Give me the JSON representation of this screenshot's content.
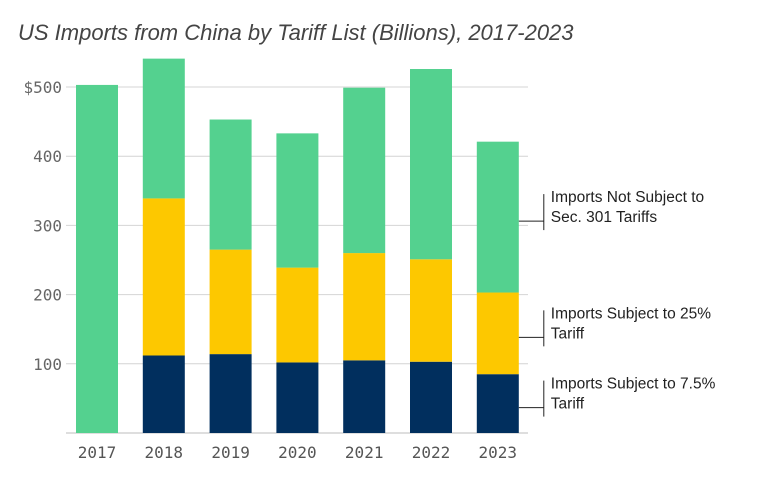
{
  "chart_data": {
    "type": "bar",
    "stacked": true,
    "title": "US Imports from China by Tariff List (Billions), 2017-2023",
    "xlabel": "",
    "ylabel": "",
    "ylim": [
      0,
      550
    ],
    "y_ticks": [
      {
        "value": 100,
        "label": "100"
      },
      {
        "value": 200,
        "label": "200"
      },
      {
        "value": 300,
        "label": "300"
      },
      {
        "value": 400,
        "label": "400"
      },
      {
        "value": 500,
        "label": "$500"
      }
    ],
    "grid": true,
    "legend_position": "right",
    "categories": [
      "2017",
      "2018",
      "2019",
      "2020",
      "2021",
      "2022",
      "2023"
    ],
    "series": [
      {
        "name": "Imports Subject to 7.5% Tariff",
        "label_lines": [
          "Imports Subject to 7.5%",
          "Tariff"
        ],
        "color": "#012f5e",
        "values": [
          0,
          112,
          114,
          102,
          105,
          103,
          85
        ]
      },
      {
        "name": "Imports Subject to 25% Tariff",
        "label_lines": [
          "Imports Subject to 25%",
          "Tariff"
        ],
        "color": "#fdc800",
        "values": [
          0,
          227,
          151,
          137,
          155,
          148,
          118
        ]
      },
      {
        "name": "Imports Not Subject to Sec. 301 Tariffs",
        "label_lines": [
          "Imports Not Subject to",
          "Sec. 301 Tariffs"
        ],
        "color": "#54d18f",
        "values": [
          503,
          202,
          188,
          194,
          239,
          275,
          218
        ]
      }
    ]
  }
}
